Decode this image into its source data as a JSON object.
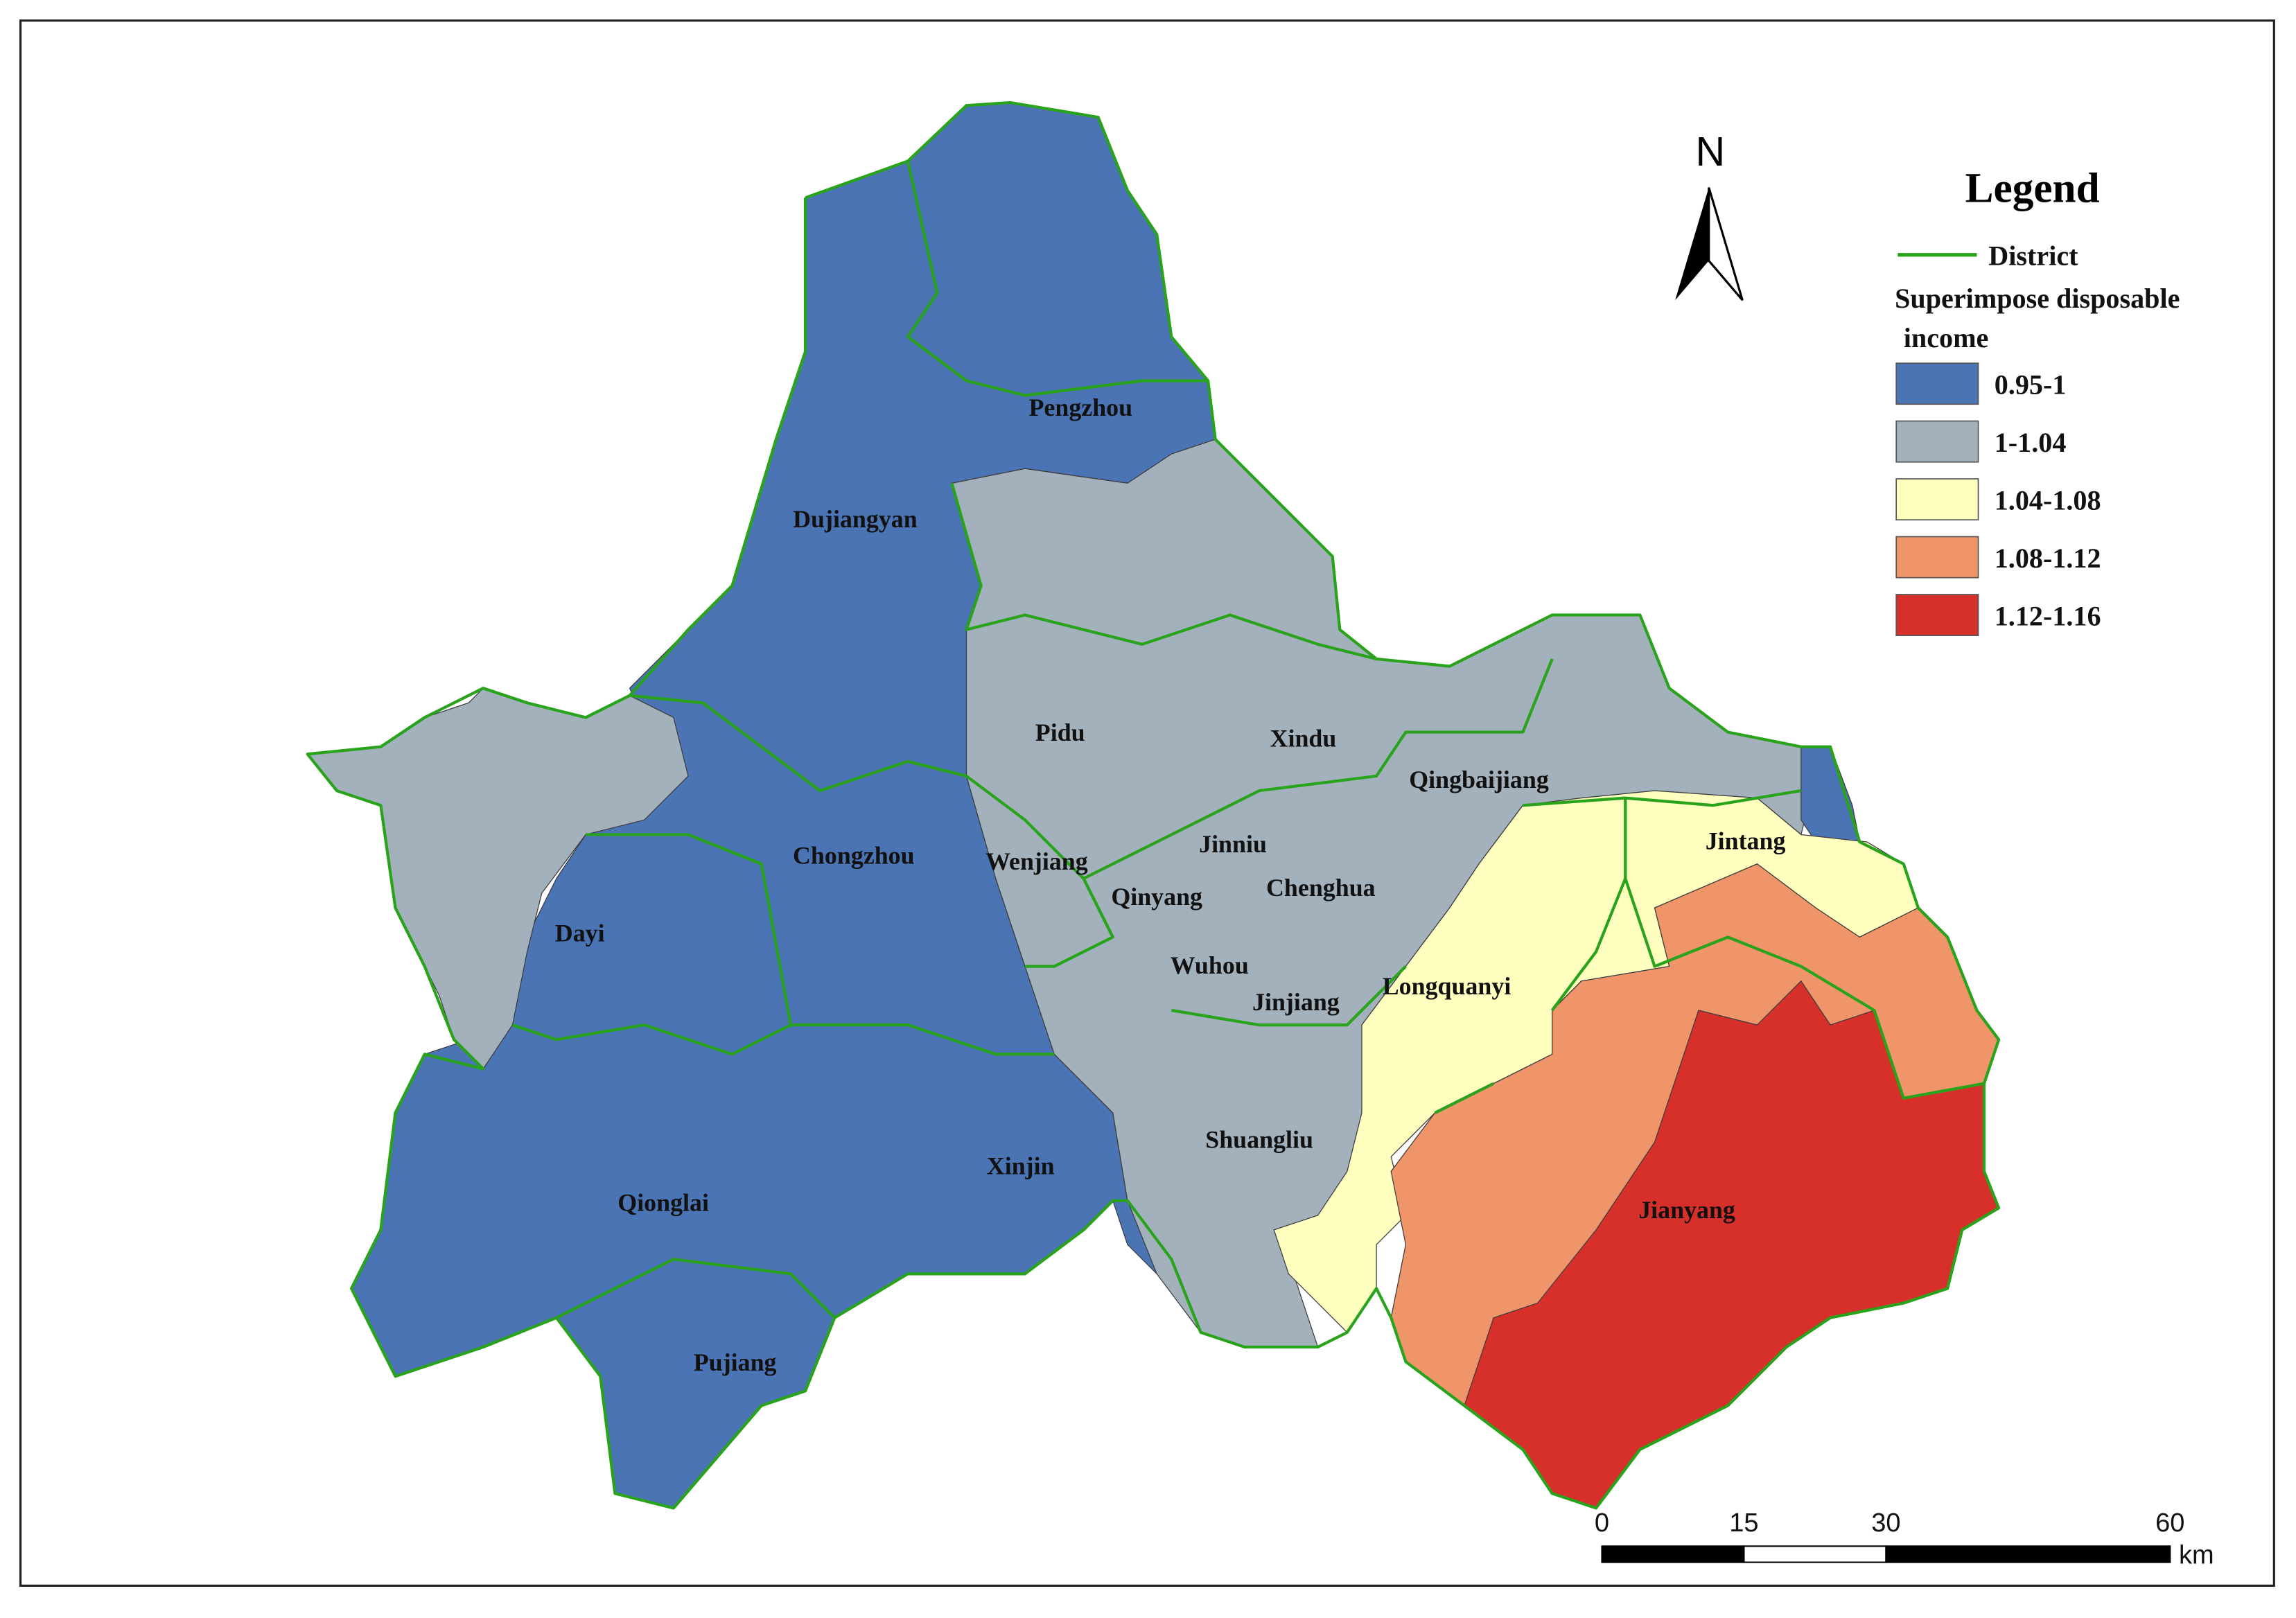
{
  "map": {
    "north": "N",
    "districts": [
      "Pengzhou",
      "Dujiangyan",
      "Pidu",
      "Xindu",
      "Qingbaijiang",
      "Jintang",
      "Chongzhou",
      "Wenjiang",
      "Jinniu",
      "Qinyang",
      "Chenghua",
      "Dayi",
      "Wuhou",
      "Jinjiang",
      "Longquanyi",
      "Shuangliu",
      "Xinjin",
      "Qionglai",
      "Jianyang",
      "Pujiang"
    ],
    "legend": {
      "title": "Legend",
      "boundary": {
        "label": "District",
        "color": "#2aa31c"
      },
      "field": [
        "Superimpose disposable",
        "income"
      ],
      "classes": [
        {
          "label": "0.95-1",
          "color": "#4a74b4"
        },
        {
          "label": "1-1.04",
          "color": "#a3b1bd"
        },
        {
          "label": "1.04-1.08",
          "color": "#ffffc0"
        },
        {
          "label": "1.08-1.12",
          "color": "#f0956a"
        },
        {
          "label": "1.12-1.16",
          "color": "#d7302b"
        }
      ]
    },
    "scale": {
      "ticks": [
        0,
        15,
        30,
        60
      ],
      "unit": "km"
    }
  }
}
